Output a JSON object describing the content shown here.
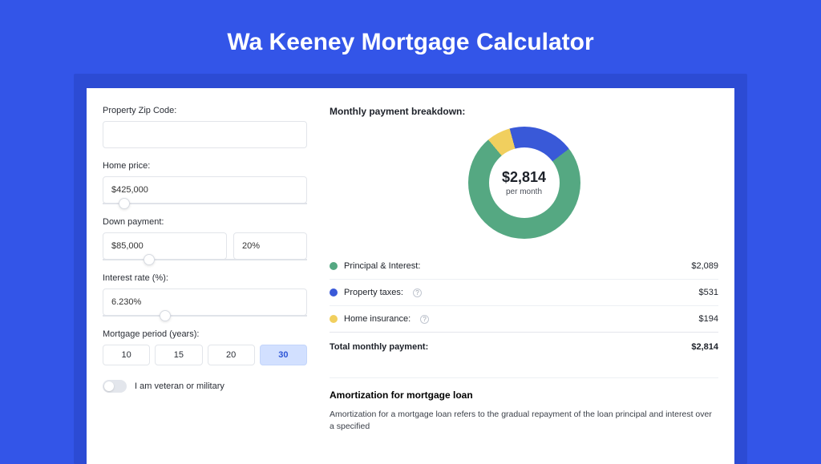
{
  "page": {
    "title": "Wa Keeney Mortgage Calculator",
    "background_color": "#3355e8",
    "frame_color": "#2c4bd4",
    "panel_color": "#ffffff"
  },
  "form": {
    "zip": {
      "label": "Property Zip Code:",
      "value": ""
    },
    "home_price": {
      "label": "Home price:",
      "value": "$425,000",
      "slider_pct": 8
    },
    "down_payment": {
      "label": "Down payment:",
      "amount": "$85,000",
      "percent": "20%",
      "slider_pct": 20
    },
    "interest_rate": {
      "label": "Interest rate (%):",
      "value": "6.230%",
      "slider_pct": 28
    },
    "period": {
      "label": "Mortgage period (years):",
      "options": [
        "10",
        "15",
        "20",
        "30"
      ],
      "selected": "30"
    },
    "veteran": {
      "label": "I am veteran or military",
      "checked": false
    }
  },
  "breakdown": {
    "title": "Monthly payment breakdown:",
    "donut": {
      "amount": "$2,814",
      "sub": "per month",
      "slices": [
        {
          "label": "Principal & Interest:",
          "color": "#55a882",
          "value": 2089,
          "display": "$2,089",
          "has_info": false
        },
        {
          "label": "Property taxes:",
          "color": "#3959d8",
          "value": 531,
          "display": "$531",
          "has_info": true
        },
        {
          "label": "Home insurance:",
          "color": "#f1cf5e",
          "value": 194,
          "display": "$194",
          "has_info": true
        }
      ],
      "total_label": "Total monthly payment:",
      "total_display": "$2,814"
    }
  },
  "amortization": {
    "title": "Amortization for mortgage loan",
    "text": "Amortization for a mortgage loan refers to the gradual repayment of the loan principal and interest over a specified"
  }
}
